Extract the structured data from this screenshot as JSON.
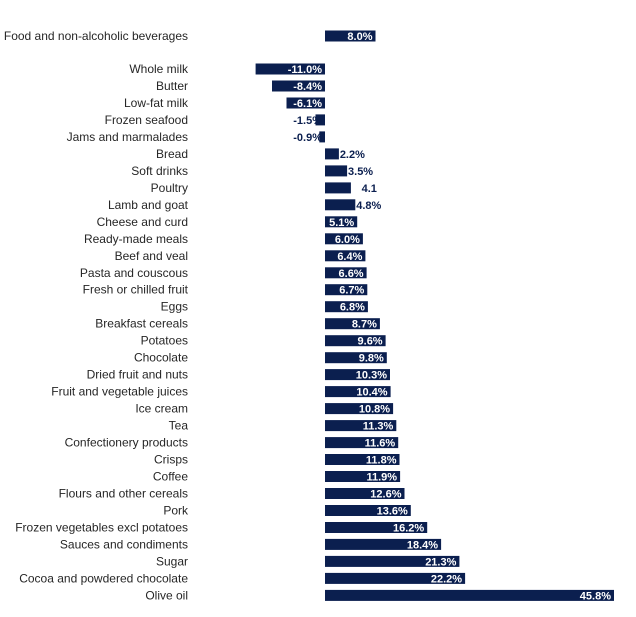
{
  "chart_data": {
    "type": "bar",
    "orientation": "horizontal",
    "bar_color": "#0b1f4f",
    "grid": false,
    "categories": [
      "Food and non-alcoholic beverages",
      "Whole milk",
      "Butter",
      "Low-fat milk",
      "Frozen seafood",
      "Jams and marmalades",
      "Bread",
      "Soft drinks",
      "Poultry",
      "Lamb and goat",
      "Cheese and curd",
      "Ready-made meals",
      "Beef and veal",
      "Pasta and couscous",
      "Fresh or chilled fruit",
      "Eggs",
      "Breakfast cereals",
      "Potatoes",
      "Chocolate",
      "Dried fruit and nuts",
      "Fruit and vegetable juices",
      "Ice cream",
      "Tea",
      "Confectionery products",
      "Crisps",
      "Coffee",
      "Flours and other cereals",
      "Pork",
      "Frozen vegetables excl potatoes",
      "Sauces and condiments",
      "Sugar",
      "Cocoa and powdered chocolate",
      "Olive oil"
    ],
    "values": [
      8.0,
      -11.0,
      -8.4,
      -6.1,
      -1.5,
      -0.9,
      2.2,
      3.5,
      4.1,
      4.8,
      5.1,
      6.0,
      6.4,
      6.6,
      6.7,
      6.8,
      8.7,
      9.6,
      9.8,
      10.3,
      10.4,
      10.8,
      11.3,
      11.6,
      11.8,
      11.9,
      12.6,
      13.6,
      16.2,
      18.4,
      21.3,
      22.2,
      45.8
    ],
    "value_labels": [
      "8.0%",
      "-11.0%",
      "-8.4%",
      "-6.1%",
      "-1.5%",
      "-0.9%",
      "2.2%",
      "3.5%",
      "4.1",
      "4.8%",
      "5.1%",
      "6.0%",
      "6.4%",
      "6.6%",
      "6.7%",
      "6.8%",
      "8.7%",
      "9.6%",
      "9.8%",
      "10.3%",
      "10.4%",
      "10.8%",
      "11.3%",
      "11.6%",
      "11.8%",
      "11.9%",
      "12.6%",
      "13.6%",
      "16.2%",
      "18.4%",
      "21.3%",
      "22.2%",
      "45.8%"
    ],
    "xlim": [
      -11.0,
      45.8
    ]
  }
}
